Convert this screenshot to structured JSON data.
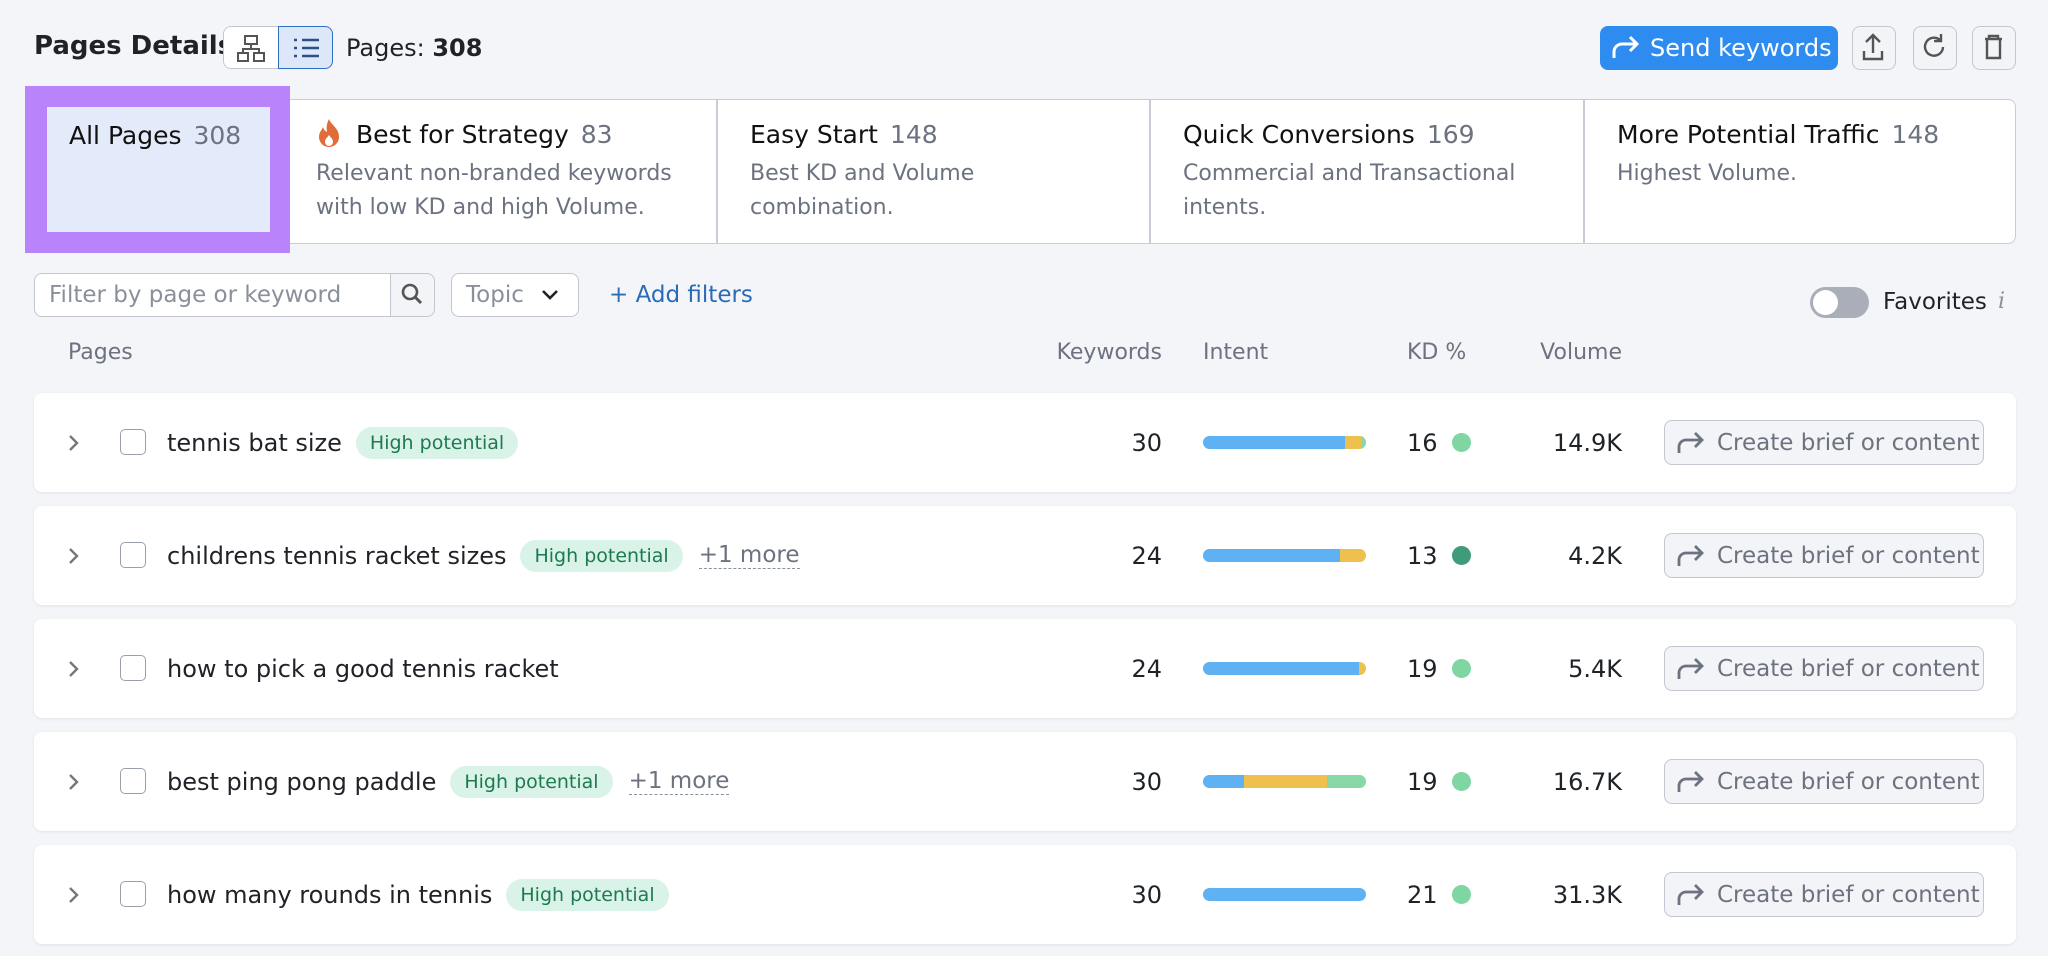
{
  "header": {
    "title": "Pages Details",
    "pages_label": "Pages:",
    "pages_count": "308",
    "send_button": "Send keywords"
  },
  "tabs": [
    {
      "name": "All Pages",
      "count": "308"
    },
    {
      "name": "Best for Strategy",
      "count": "83",
      "description": "Relevant non-branded keywords with low KD and high Volume."
    },
    {
      "name": "Easy Start",
      "count": "148",
      "description": "Best KD and Volume combination."
    },
    {
      "name": "Quick Conversions",
      "count": "169",
      "description": "Commercial and Transactional intents."
    },
    {
      "name": "More Potential Traffic",
      "count": "148",
      "description": "Highest Volume."
    }
  ],
  "filters": {
    "search_placeholder": "Filter by page or keyword",
    "topic": "Topic",
    "add_filters": "+ Add filters",
    "favorites": "Favorites"
  },
  "columns": [
    "Pages",
    "Keywords",
    "Intent",
    "KD %",
    "Volume"
  ],
  "intent_colors": [
    "#5eb1f3",
    "#f0c04f",
    "#86d9a6"
  ],
  "rows": [
    {
      "page": "tennis bat size",
      "tag": "High potential",
      "keywords": "30",
      "intent": [
        87,
        10,
        3
      ],
      "kd": "16",
      "kd_color": "#7fd6a2",
      "volume": "14.9K",
      "action": "Create brief or content"
    },
    {
      "page": "childrens tennis racket sizes",
      "tag": "High potential",
      "more": "+1 more",
      "keywords": "24",
      "intent": [
        84,
        16
      ],
      "kd": "13",
      "kd_color": "#3f9b7a",
      "volume": "4.2K",
      "action": "Create brief or content"
    },
    {
      "page": "how to pick a good tennis racket",
      "keywords": "24",
      "intent": [
        96,
        4
      ],
      "kd": "19",
      "kd_color": "#7fd6a2",
      "volume": "5.4K",
      "action": "Create brief or content"
    },
    {
      "page": "best ping pong paddle",
      "tag": "High potential",
      "more": "+1 more",
      "keywords": "30",
      "intent": [
        25,
        51,
        24
      ],
      "kd": "19",
      "kd_color": "#7fd6a2",
      "volume": "16.7K",
      "action": "Create brief or content"
    },
    {
      "page": "how many rounds in tennis",
      "tag": "High potential",
      "keywords": "30",
      "intent": [
        100
      ],
      "kd": "21",
      "kd_color": "#7fd6a2",
      "volume": "31.3K",
      "action": "Create brief or content"
    }
  ]
}
